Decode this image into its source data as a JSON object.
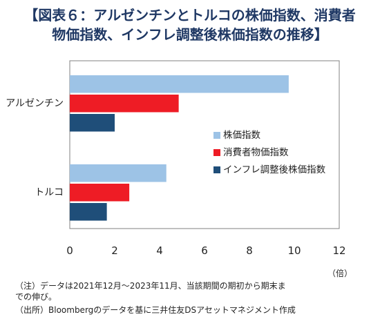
{
  "title_line1": "【図表６：アルゼンチンとトルコの株価指数、消費者",
  "title_line2": "物価指数、インフレ調整後株価指数の推移】",
  "unit_label": "（倍）",
  "notes": {
    "note_line1": "（注）データは2021年12月～2023年11月、当該期間の期初から期末ま",
    "note_line2": "での伸び。",
    "source": "（出所）Bloombergのデータを基に三井住友DSアセットマネジメント作成"
  },
  "chart_data": {
    "type": "bar",
    "orientation": "horizontal",
    "categories": [
      "アルゼンチン",
      "トルコ"
    ],
    "series": [
      {
        "name": "株価指数",
        "color": "#9dc3e6",
        "values": [
          9.75,
          4.3
        ]
      },
      {
        "name": "消費者物価指数",
        "color": "#ee1c25",
        "values": [
          4.85,
          2.65
        ]
      },
      {
        "name": "インフレ調整後株価指数",
        "color": "#1f4e79",
        "values": [
          2.0,
          1.65
        ]
      }
    ],
    "xlim": [
      0,
      12
    ],
    "xticks": [
      0,
      2,
      4,
      6,
      8,
      10,
      12
    ],
    "grid": false,
    "legend_position": "right-center"
  }
}
